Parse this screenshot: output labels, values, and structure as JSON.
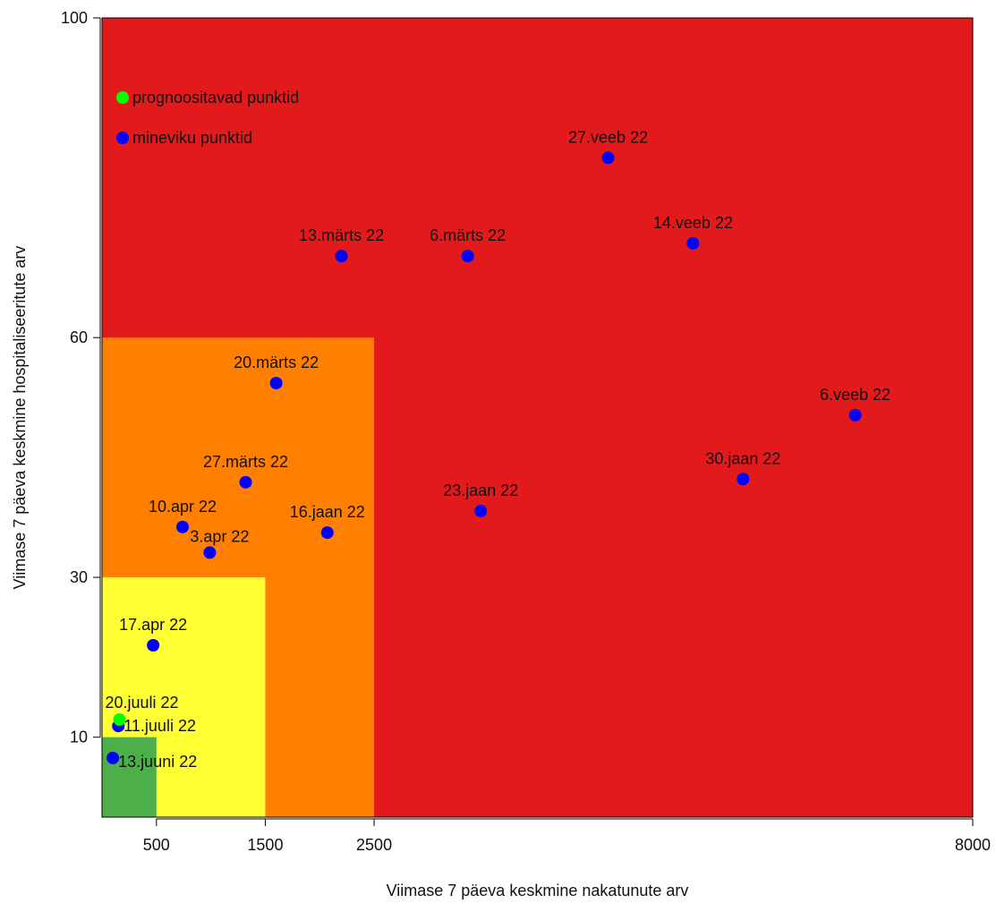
{
  "chart_data": {
    "type": "scatter",
    "xlabel": "Viimase 7 päeva keskmine nakatunute arv",
    "ylabel": "Viimase 7 päeva keskmine hospitaliseeritute arv",
    "xlim": [
      0,
      8000
    ],
    "ylim": [
      0,
      100
    ],
    "x_ticks": [
      500,
      1500,
      2500,
      8000
    ],
    "y_ticks": [
      10,
      30,
      60,
      100
    ],
    "tick_labels": {
      "x": [
        "500",
        "1500",
        "2500",
        "8000"
      ],
      "y": [
        "10",
        "30",
        "60",
        "100"
      ]
    },
    "grid": false,
    "legend_position": "top-left",
    "zones": [
      {
        "name": "red",
        "x": [
          0,
          8000
        ],
        "y": [
          0,
          100
        ],
        "color": "#e31a1c"
      },
      {
        "name": "orange",
        "x": [
          0,
          2500
        ],
        "y": [
          0,
          60
        ],
        "color": "#ff7f00"
      },
      {
        "name": "yellow",
        "x": [
          0,
          1500
        ],
        "y": [
          0,
          30
        ],
        "color": "#ffff33"
      },
      {
        "name": "green",
        "x": [
          0,
          500
        ],
        "y": [
          0,
          10
        ],
        "color": "#4daf4a"
      }
    ],
    "series": [
      {
        "name": "mineviku punktid",
        "color": "#0000ff",
        "points": [
          {
            "label": "27.veeb 22",
            "x": 4650,
            "y": 82.5
          },
          {
            "label": "14.veeb 22",
            "x": 5430,
            "y": 71.8
          },
          {
            "label": "13.märts 22",
            "x": 2200,
            "y": 70.2
          },
          {
            "label": "6.märts 22",
            "x": 3360,
            "y": 70.2
          },
          {
            "label": "20.märts 22",
            "x": 1600,
            "y": 54.3
          },
          {
            "label": "6.veeb 22",
            "x": 6920,
            "y": 50.3
          },
          {
            "label": "30.jaan 22",
            "x": 5890,
            "y": 42.3
          },
          {
            "label": "27.märts 22",
            "x": 1320,
            "y": 41.9
          },
          {
            "label": "23.jaan 22",
            "x": 3480,
            "y": 38.3
          },
          {
            "label": "16.jaan 22",
            "x": 2070,
            "y": 35.6
          },
          {
            "label": "10.apr 22",
            "x": 740,
            "y": 36.3
          },
          {
            "label": "3.apr 22",
            "x": 990,
            "y": 33.1
          },
          {
            "label": "17.apr 22",
            "x": 470,
            "y": 21.5
          },
          {
            "label": "11.juuli 22",
            "x": 150,
            "y": 11.4
          },
          {
            "label": "13.juuni 22",
            "x": 100,
            "y": 7.4
          }
        ]
      },
      {
        "name": "prognoositavad punktid",
        "color": "#00ff00",
        "points": [
          {
            "label": "20.juuli 22",
            "x": 160,
            "y": 12.2
          }
        ]
      }
    ]
  }
}
